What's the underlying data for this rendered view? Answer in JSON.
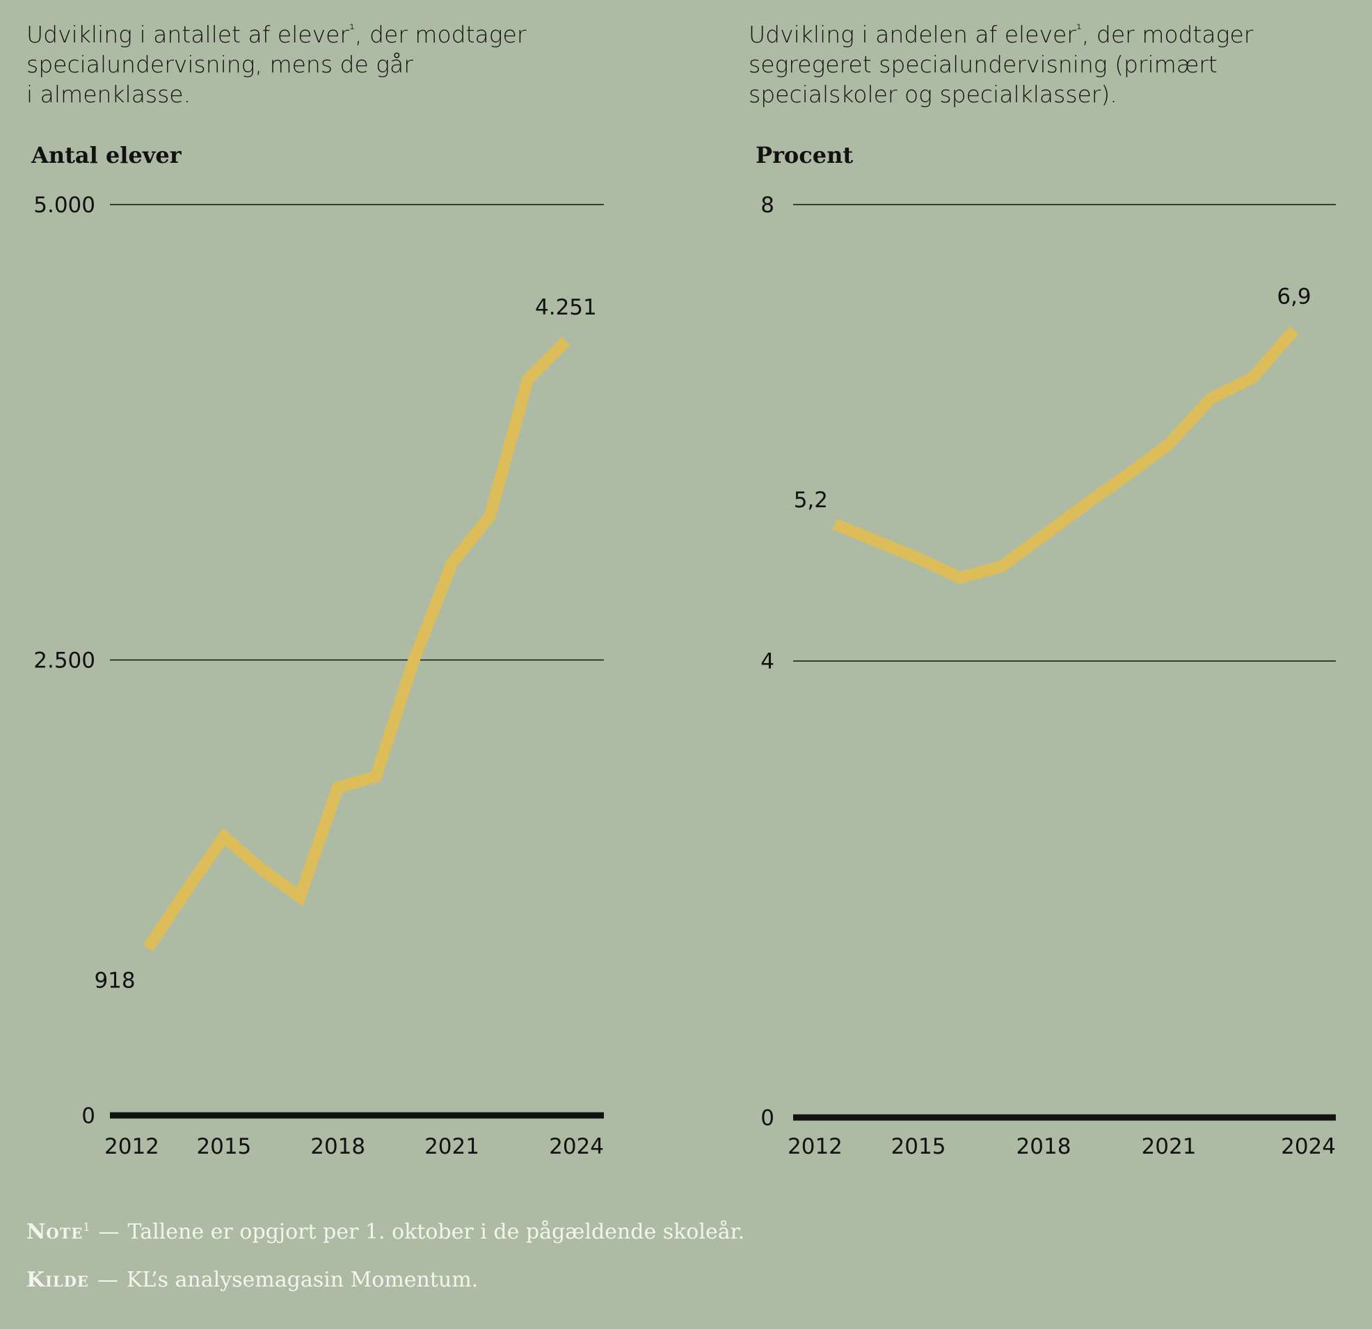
{
  "colors": {
    "background": "#aebba4",
    "line": "#dcbd5a",
    "text": "#111111",
    "footer": "#f4f4ee"
  },
  "left": {
    "subtitle": "Udvikling i antallet af elever¹, der modtager specialundervisning, mens de går i almenklasse.",
    "subtitle_lines": [
      "Udvikling i antallet af elever",
      "¹",
      ", der modtager",
      "specialundervisning, mens de går",
      "i almenklasse."
    ],
    "ylabel": "Antal elever"
  },
  "right": {
    "subtitle_lines": [
      "Udvikling i andelen af elever",
      "¹",
      ", der modtager",
      "segregeret specialundervisning (primært",
      "specialskoler og specialklasser)."
    ],
    "ylabel": "Procent"
  },
  "chart_data": [
    {
      "type": "line",
      "title": "Udvikling i antallet af elever¹, der modtager specialundervisning, mens de går i almenklasse.",
      "ylabel": "Antal elever",
      "xlabel": "",
      "x": [
        2013,
        2014,
        2015,
        2016,
        2017,
        2018,
        2019,
        2020,
        2021,
        2022,
        2023,
        2024
      ],
      "series": [
        {
          "values": [
            918,
            1230,
            1530,
            1350,
            1200,
            1800,
            1860,
            2500,
            3030,
            3290,
            4040,
            4251
          ]
        }
      ],
      "data_labels": [
        {
          "x": 2013,
          "text": "918",
          "position": "below"
        },
        {
          "x": 2024,
          "text": "4.251",
          "position": "above"
        }
      ],
      "ylim": [
        0,
        5000
      ],
      "xlim": [
        2012,
        2025
      ],
      "yticks": [
        0,
        2500,
        5000
      ],
      "ytick_labels": [
        "0",
        "2.500",
        "5.000"
      ],
      "xticks": [
        2012,
        2015,
        2018,
        2021,
        2024
      ],
      "xtick_labels": [
        "2012",
        "2015",
        "2018",
        "2021",
        "2024"
      ],
      "grid": true
    },
    {
      "type": "line",
      "title": "Udvikling i andelen af elever¹, der modtager segregeret specialundervisning (primært specialskoler og specialklasser).",
      "ylabel": "Procent",
      "xlabel": "",
      "x": [
        2013,
        2014,
        2015,
        2016,
        2017,
        2018,
        2019,
        2020,
        2021,
        2022,
        2023,
        2024
      ],
      "series": [
        {
          "values": [
            5.2,
            5.05,
            4.9,
            4.73,
            4.83,
            5.1,
            5.37,
            5.63,
            5.9,
            6.3,
            6.48,
            6.9
          ]
        }
      ],
      "data_labels": [
        {
          "x": 2013,
          "text": "5,2",
          "position": "above-left"
        },
        {
          "x": 2024,
          "text": "6,9",
          "position": "above"
        }
      ],
      "ylim": [
        0,
        8
      ],
      "xlim": [
        2012,
        2025
      ],
      "yticks": [
        0,
        4,
        8
      ],
      "ytick_labels": [
        "0",
        "4",
        "8"
      ],
      "xticks": [
        2012,
        2015,
        2018,
        2021,
        2024
      ],
      "xtick_labels": [
        "2012",
        "2015",
        "2018",
        "2021",
        "2024"
      ],
      "grid": true
    }
  ],
  "footer": {
    "note_key": "Note",
    "note_mark": "1",
    "note_dash": "—",
    "note_text": "Tallene er opgjort per 1. oktober i de pågældende skoleår.",
    "source_key": "Kilde",
    "source_dash": "—",
    "source_text": "KL’s analysemagasin Momentum."
  }
}
